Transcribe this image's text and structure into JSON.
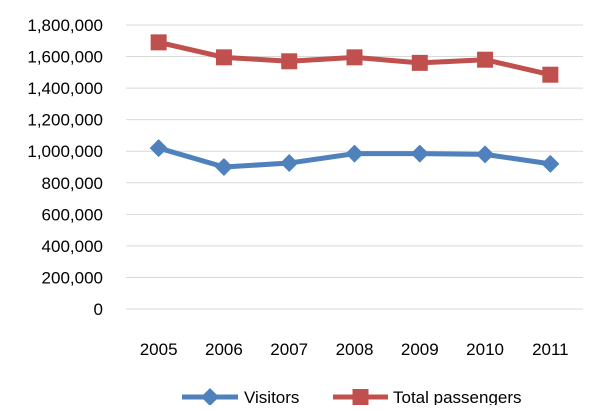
{
  "chart_data": {
    "type": "line",
    "title": "",
    "xlabel": "",
    "ylabel": "",
    "categories": [
      "2005",
      "2006",
      "2007",
      "2008",
      "2009",
      "2010",
      "2011"
    ],
    "ylim": [
      0,
      1800000
    ],
    "y_ticks": [
      "0",
      "200,000",
      "400,000",
      "600,000",
      "800,000",
      "1,000,000",
      "1,200,000",
      "1,400,000",
      "1,600,000",
      "1,800,000"
    ],
    "y_tick_values": [
      0,
      200000,
      400000,
      600000,
      800000,
      1000000,
      1200000,
      1400000,
      1600000,
      1800000
    ],
    "grid": true,
    "legend_position": "bottom",
    "series": [
      {
        "name": "Visitors",
        "color": "#4f81bd",
        "marker": "diamond",
        "values": [
          1020000,
          900000,
          925000,
          985000,
          985000,
          980000,
          920000
        ]
      },
      {
        "name": "Total passengers",
        "color": "#c0504d",
        "marker": "square",
        "values": [
          1690000,
          1595000,
          1570000,
          1595000,
          1560000,
          1580000,
          1485000
        ]
      }
    ]
  }
}
